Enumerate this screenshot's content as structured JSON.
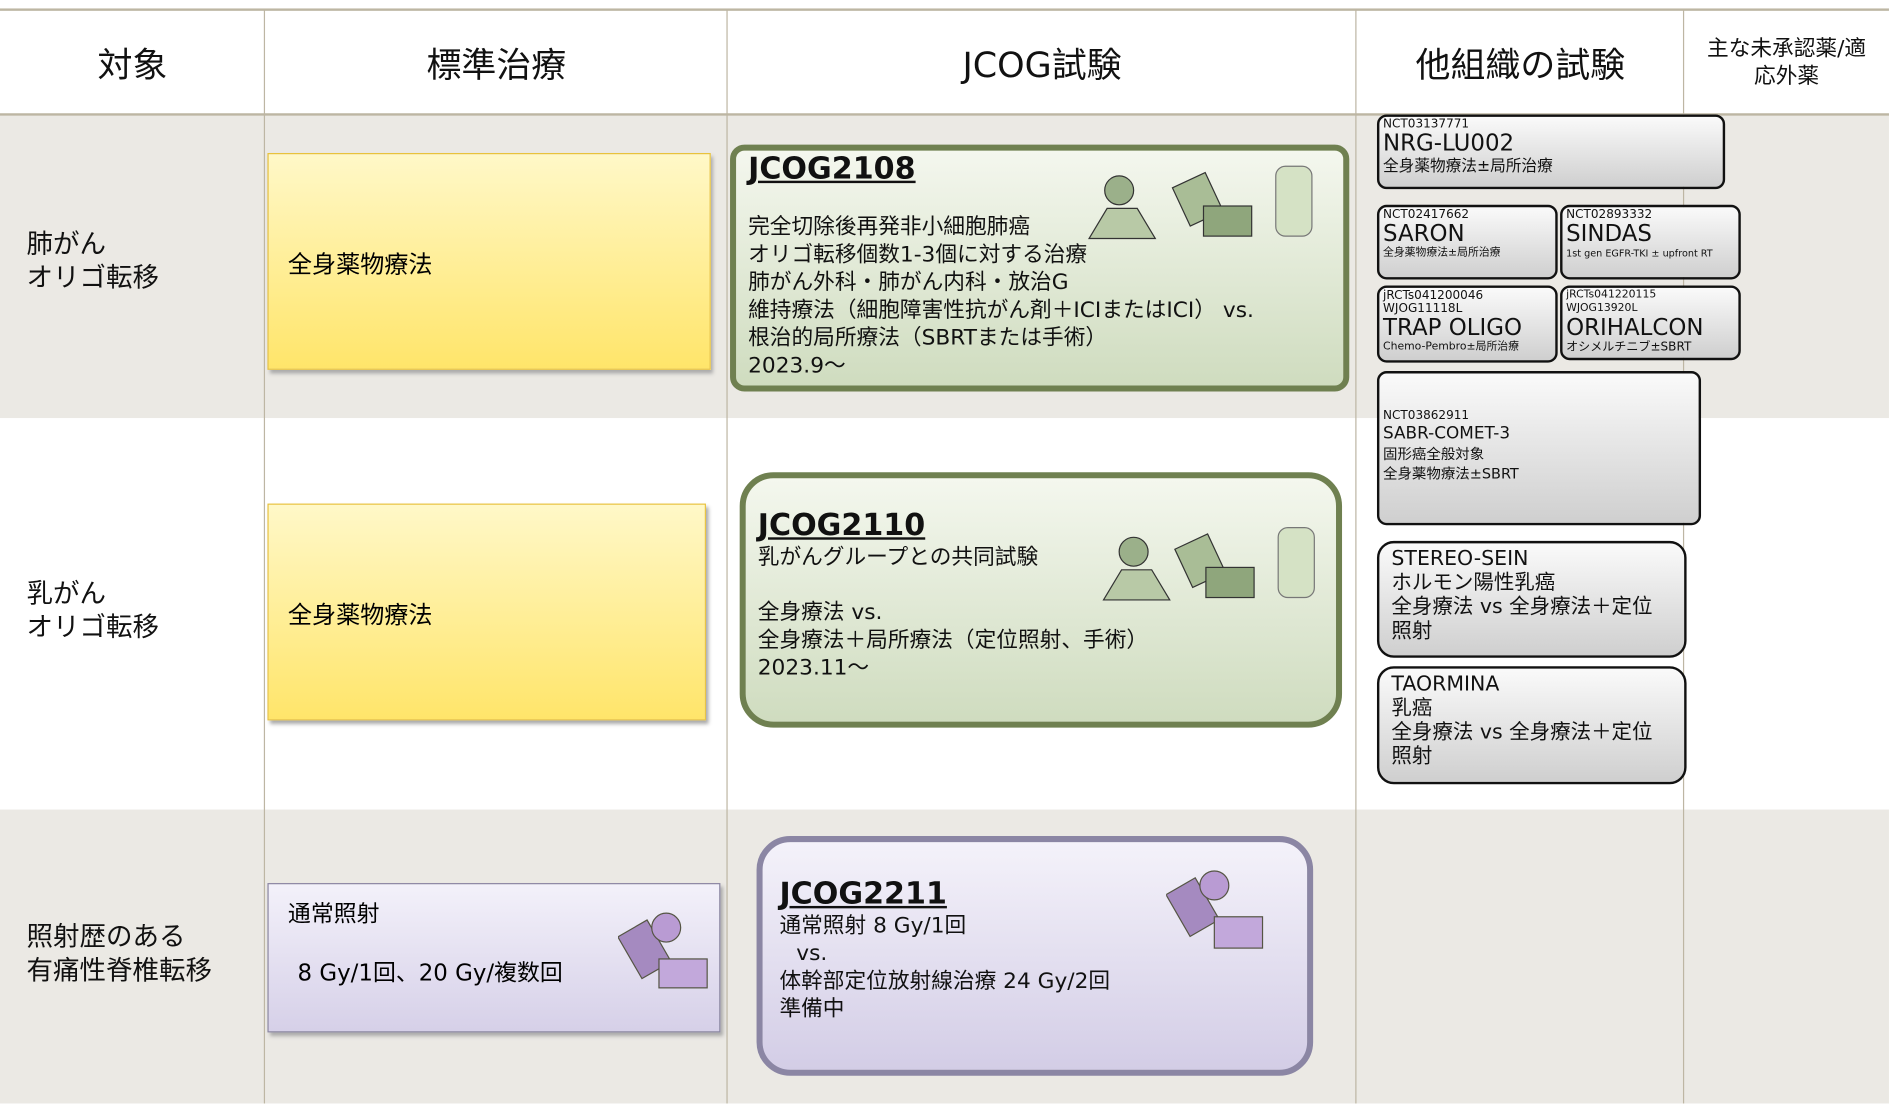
{
  "header": {
    "columns": [
      "対象",
      "標準治療",
      "JCOG試験",
      "他組織の試験",
      "主な未承認薬/適応外薬"
    ]
  },
  "rows": [
    {
      "target": [
        "肺がん",
        "オリゴ転移"
      ],
      "standard": [
        "全身薬物療法"
      ],
      "jcog": {
        "id": "JCOG2108",
        "lines": [
          "完全切除後再発非小細胞肺癌",
          "オリゴ転移個数1-3個に対する治療",
          "肺がん外科・肺がん内科・放治G",
          "維持療法（細胞障害性抗がん剤＋ICIまたはICI） vs.",
          "根治的局所療法（SBRTまたは手術）",
          "2023.9～"
        ]
      }
    },
    {
      "target": [
        "乳がん",
        "オリゴ転移"
      ],
      "standard": [
        "全身薬物療法"
      ],
      "jcog": {
        "id": "JCOG2110",
        "lines": [
          "乳がんグループとの共同試験",
          "",
          "全身療法 vs.",
          "全身療法＋局所療法（定位照射、手術）",
          "2023.11～"
        ]
      }
    },
    {
      "target": [
        "照射歴のある",
        "有痛性脊椎転移"
      ],
      "standard": [
        "通常照射",
        "8 Gy/1回、20 Gy/複数回"
      ],
      "jcog": {
        "id": "JCOG2211",
        "lines": [
          "通常照射 8 Gy/1回",
          "vs.",
          "体幹部定位放射線治療 24 Gy/2回",
          "準備中"
        ]
      }
    }
  ],
  "other_trials": [
    {
      "lines": [
        "NCT03137771",
        "NRG-LU002",
        "全身薬物療法±局所治療"
      ]
    },
    {
      "lines": [
        "NCT02417662",
        "SARON",
        "全身薬物療法±局所治療"
      ]
    },
    {
      "lines": [
        "NCT02893332",
        "SINDAS",
        "1st gen EGFR-TKI ± upfront RT"
      ]
    },
    {
      "lines": [
        "jRCTs041200046",
        "WJOG11118L",
        "TRAP OLIGO",
        "Chemo-Pembro±局所治療"
      ]
    },
    {
      "lines": [
        "jRCTs041220115",
        "WJOG13920L",
        "ORIHALCON",
        "オシメルチニブ±SBRT"
      ]
    },
    {
      "lines": [
        "NCT03862911",
        "SABR-COMET-3",
        "固形癌全般対象",
        "全身薬物療法±SBRT"
      ]
    },
    {
      "lines": [
        "STEREO-SEIN",
        "ホルモン陽性乳癌",
        "全身療法 vs 全身療法＋定位照射"
      ]
    },
    {
      "lines": [
        "TAORMINA",
        "乳癌",
        "全身療法 vs 全身療法＋定位照射"
      ]
    }
  ]
}
